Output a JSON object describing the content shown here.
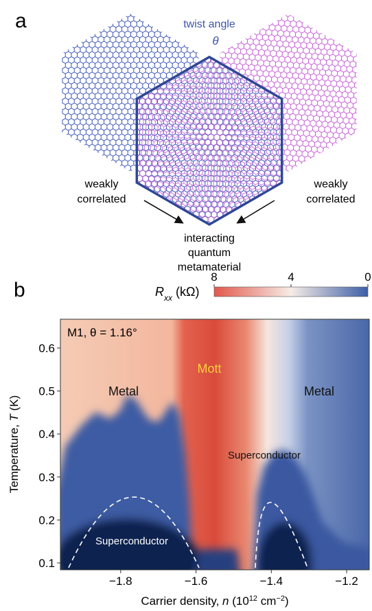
{
  "panel_a": {
    "label": "a",
    "twist_label": "twist angle",
    "theta": "θ",
    "left_label": [
      "weakly",
      "correlated"
    ],
    "right_label": [
      "weakly",
      "correlated"
    ],
    "center_label": [
      "interacting",
      "quantum",
      "metamaterial"
    ]
  },
  "chart_data": {
    "type": "heatmap",
    "panel_label": "b",
    "annotation": "M1, θ = 1.16°",
    "region_labels": [
      "Mott",
      "Metal",
      "Metal",
      "Superconductor",
      "Superconductor"
    ],
    "xlabel_parts": [
      "Carrier density, ",
      "n",
      " (10",
      "12",
      " cm",
      "−2",
      ")"
    ],
    "ylabel_parts": [
      "Temperature, ",
      "T",
      " (K)"
    ],
    "xlim": [
      -1.96,
      -1.14
    ],
    "xticks": [
      {
        "value": -1.8,
        "label": "−1.8"
      },
      {
        "value": -1.6,
        "label": "−1.6"
      },
      {
        "value": -1.4,
        "label": "−1.4"
      },
      {
        "value": -1.2,
        "label": "−1.2"
      }
    ],
    "ylim": [
      0.084,
      0.667
    ],
    "yticks": [
      0.1,
      0.2,
      0.3,
      0.4,
      0.5,
      0.6
    ],
    "colorbar": {
      "label_parts": [
        "R",
        "xx",
        " (kΩ)"
      ],
      "lim": [
        8,
        0
      ],
      "ticks": [
        8,
        4,
        0
      ],
      "colors": [
        "#e0584c",
        "#f6ece6",
        "#3e5fa6"
      ]
    }
  }
}
